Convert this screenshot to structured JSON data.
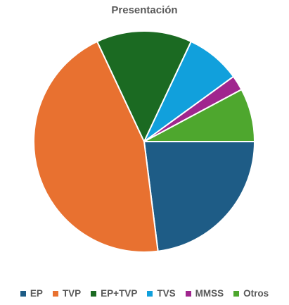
{
  "chart_data": {
    "type": "pie",
    "title": "Presentación",
    "categories": [
      "EP",
      "TVP",
      "EP+TVP",
      "TVS",
      "MMSS",
      "Otros"
    ],
    "values": [
      23,
      45,
      14,
      8,
      2.2,
      7.8
    ],
    "colors": [
      "#1e5c86",
      "#e87130",
      "#1b6a22",
      "#11a0dc",
      "#a0268e",
      "#4ea72e"
    ],
    "start_angle_deg": 90,
    "direction": "clockwise",
    "legend_position": "bottom"
  }
}
